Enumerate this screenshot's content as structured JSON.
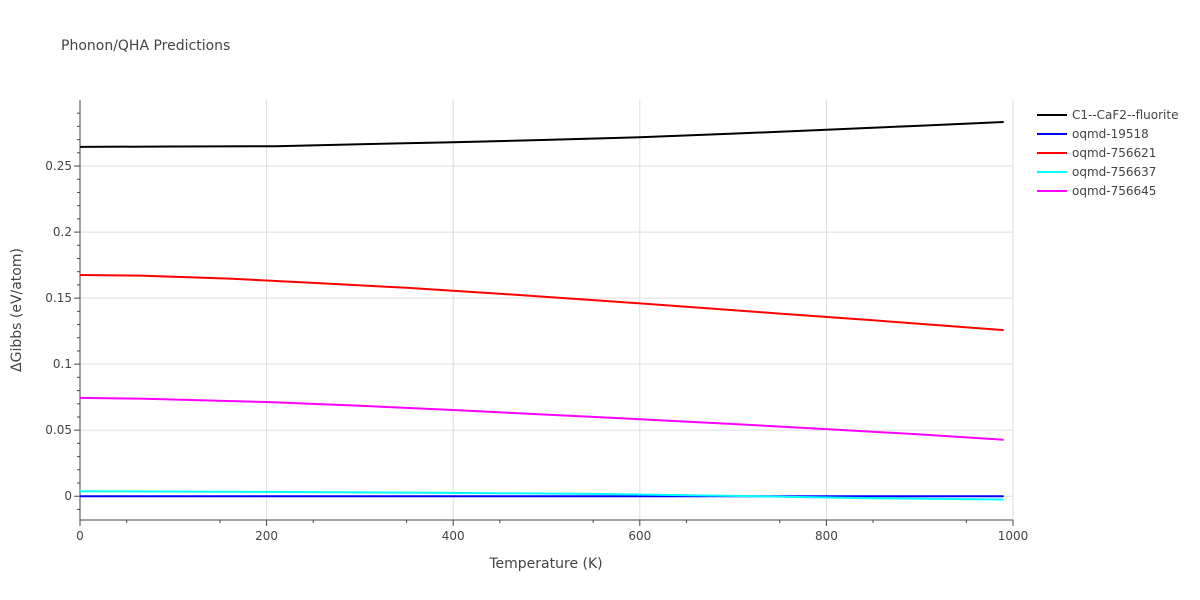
{
  "chart_data": {
    "type": "line",
    "title": "Phonon/QHA Predictions",
    "xlabel": "Temperature (K)",
    "ylabel": "ΔGibbs (eV/atom)",
    "xlim": [
      0,
      1000
    ],
    "ylim": [
      -0.018,
      0.3
    ],
    "xticks": [
      0,
      200,
      400,
      600,
      800,
      1000
    ],
    "xtick_labels": [
      "0",
      "200",
      "400",
      "600",
      "800",
      "1000"
    ],
    "yticks": [
      0,
      0.05,
      0.1,
      0.15,
      0.2,
      0.25
    ],
    "ytick_labels": [
      "0",
      "0.05",
      "0.1",
      "0.15",
      "0.2",
      "0.25"
    ],
    "grid": true,
    "legend_position": "top-right-outside",
    "series": [
      {
        "name": "C1--CaF2--fluorite",
        "color": "#000000",
        "x": [
          0,
          100,
          210,
          300,
          400,
          500,
          600,
          700,
          800,
          900,
          990
        ],
        "y": [
          0.2645,
          0.2648,
          0.265,
          0.2665,
          0.268,
          0.2698,
          0.2718,
          0.2745,
          0.2775,
          0.2805,
          0.2833
        ]
      },
      {
        "name": "oqmd-19518",
        "color": "#0000ff",
        "x": [
          0,
          200,
          400,
          600,
          800,
          990
        ],
        "y": [
          0,
          0,
          0,
          0,
          0,
          0
        ]
      },
      {
        "name": "oqmd-756621",
        "color": "#ff0000",
        "x": [
          0,
          65,
          160,
          250,
          350,
          450,
          550,
          650,
          750,
          850,
          990
        ],
        "y": [
          0.1675,
          0.167,
          0.1648,
          0.1615,
          0.1578,
          0.1533,
          0.1485,
          0.1435,
          0.1383,
          0.1332,
          0.1258
        ]
      },
      {
        "name": "oqmd-756637",
        "color": "#00ffff",
        "x": [
          0,
          200,
          400,
          560,
          700,
          850,
          990
        ],
        "y": [
          0.0038,
          0.0033,
          0.0025,
          0.0017,
          0.0003,
          -0.0015,
          -0.0025
        ]
      },
      {
        "name": "oqmd-756645",
        "color": "#ff00ff",
        "x": [
          0,
          70,
          200,
          300,
          400,
          500,
          600,
          700,
          800,
          900,
          990
        ],
        "y": [
          0.0745,
          0.0738,
          0.0713,
          0.0685,
          0.0653,
          0.0618,
          0.0583,
          0.0547,
          0.0508,
          0.0468,
          0.0428
        ]
      }
    ]
  }
}
